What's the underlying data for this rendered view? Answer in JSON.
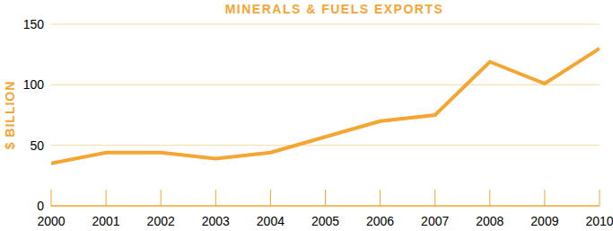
{
  "chart_data": {
    "type": "line",
    "title": "MINERALS & FUELS EXPORTS",
    "y_label": "$ BILLION",
    "x": [
      2000,
      2001,
      2002,
      2003,
      2004,
      2005,
      2006,
      2007,
      2008,
      2009,
      2010
    ],
    "values": [
      35,
      44,
      44,
      39,
      44,
      57,
      70,
      75,
      119,
      101,
      130
    ],
    "color": "#f5a531",
    "xlim": [
      2000,
      2010
    ],
    "xticks": [
      2000,
      2001,
      2002,
      2003,
      2004,
      2005,
      2006,
      2007,
      2008,
      2009,
      2010
    ],
    "ylim": [
      0,
      150
    ],
    "yticks": [
      0,
      50,
      100,
      150
    ],
    "grid": true
  }
}
